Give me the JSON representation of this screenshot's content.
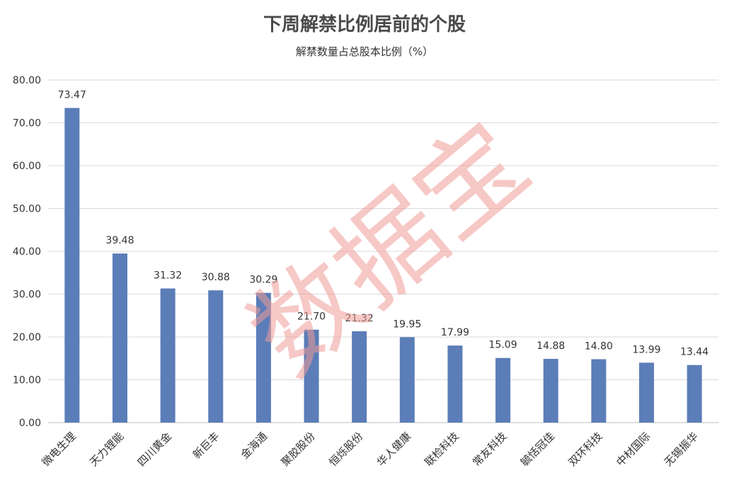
{
  "chart_data": {
    "type": "bar",
    "title": "下周解禁比例居前的个股",
    "subtitle": "解禁数量占总股本比例（%）",
    "categories": [
      "微电生理",
      "天力锂能",
      "四川黄金",
      "新巨丰",
      "金海通",
      "聚胶股份",
      "恒烁股份",
      "华人健康",
      "联检科技",
      "常友科技",
      "毓恬冠佳",
      "双环科技",
      "中材国际",
      "无锡振华"
    ],
    "values": [
      73.47,
      39.48,
      31.32,
      30.88,
      30.29,
      21.7,
      21.32,
      19.95,
      17.99,
      15.09,
      14.88,
      14.8,
      13.99,
      13.44
    ],
    "value_labels": [
      "73.47",
      "39.48",
      "31.32",
      "30.88",
      "30.29",
      "21.70",
      "21.32",
      "19.95",
      "17.99",
      "15.09",
      "14.88",
      "14.80",
      "13.99",
      "13.44"
    ],
    "yticks": [
      "0.00",
      "10.00",
      "20.00",
      "30.00",
      "40.00",
      "50.00",
      "60.00",
      "70.00",
      "80.00"
    ],
    "ylim": [
      0,
      80
    ],
    "grid": true,
    "bar_color": "#5b7db8",
    "watermark": "数据宝"
  }
}
